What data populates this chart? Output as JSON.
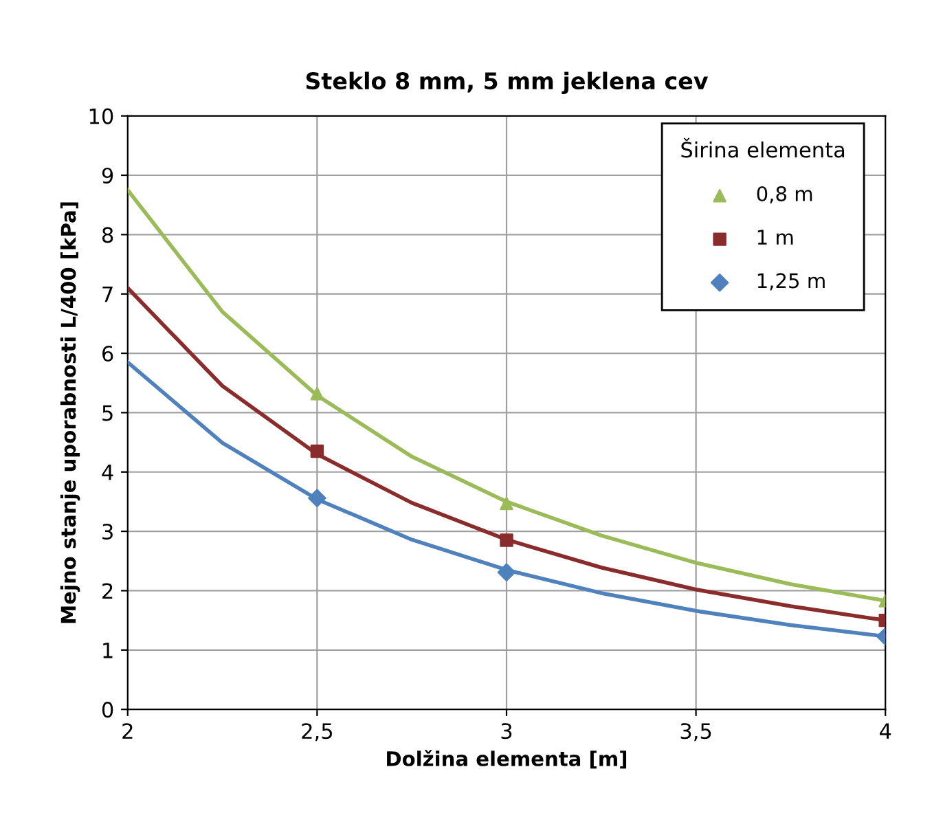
{
  "chart_data": {
    "type": "line",
    "title": "Steklo 8 mm, 5 mm jeklena cev",
    "xlabel": "Dolžina elementa [m]",
    "ylabel": "Mejno stanje uporabnosti L/400 [kPa]",
    "legend_title": "Širina elementa",
    "legend": "right",
    "grid": true,
    "xlim": [
      2,
      4
    ],
    "xticks": [
      2,
      {
        "value": 2.5,
        "label": "2,5"
      },
      3,
      {
        "value": 3.5,
        "label": "3,5"
      },
      4
    ],
    "ylim": [
      0,
      10
    ],
    "yticks": [
      0,
      1,
      2,
      3,
      4,
      5,
      6,
      7,
      8,
      9,
      10
    ],
    "series": [
      {
        "color": "#9bbb59",
        "line_style": "solid",
        "x": [
          2,
          2.25,
          2.5,
          2.75,
          3,
          3.25,
          3.5,
          3.75,
          4
        ],
        "values": [
          8.75,
          6.7,
          5.29,
          4.26,
          3.5,
          2.93,
          2.47,
          2.11,
          1.83
        ]
      },
      {
        "color": "#8b2c2c",
        "line_style": "solid",
        "x": [
          2,
          2.25,
          2.5,
          2.75,
          3,
          3.25,
          3.5,
          3.75,
          4
        ],
        "values": [
          7.1,
          5.45,
          4.3,
          3.48,
          2.86,
          2.39,
          2.02,
          1.74,
          1.5
        ]
      },
      {
        "color": "#4f81bd",
        "line_style": "solid",
        "x": [
          2,
          2.25,
          2.5,
          2.75,
          3,
          3.25,
          3.5,
          3.75,
          4
        ],
        "values": [
          5.85,
          4.49,
          3.54,
          2.86,
          2.35,
          1.96,
          1.66,
          1.42,
          1.23
        ]
      },
      {
        "type": "scatter",
        "name": "0,8 m",
        "color": "#9bbb59",
        "marker": "triangle",
        "x": [
          2.5,
          3,
          4
        ],
        "values": [
          5.32,
          3.47,
          1.83
        ]
      },
      {
        "type": "scatter",
        "name": "1 m",
        "color": "#8b2c2c",
        "marker": "square",
        "x": [
          2.5,
          3,
          4
        ],
        "values": [
          4.35,
          2.85,
          1.5
        ]
      },
      {
        "type": "scatter",
        "name": "1,25 m",
        "color": "#4f81bd",
        "marker": "diamond",
        "x": [
          2.5,
          3,
          4
        ],
        "values": [
          3.56,
          2.31,
          1.23
        ]
      }
    ]
  }
}
